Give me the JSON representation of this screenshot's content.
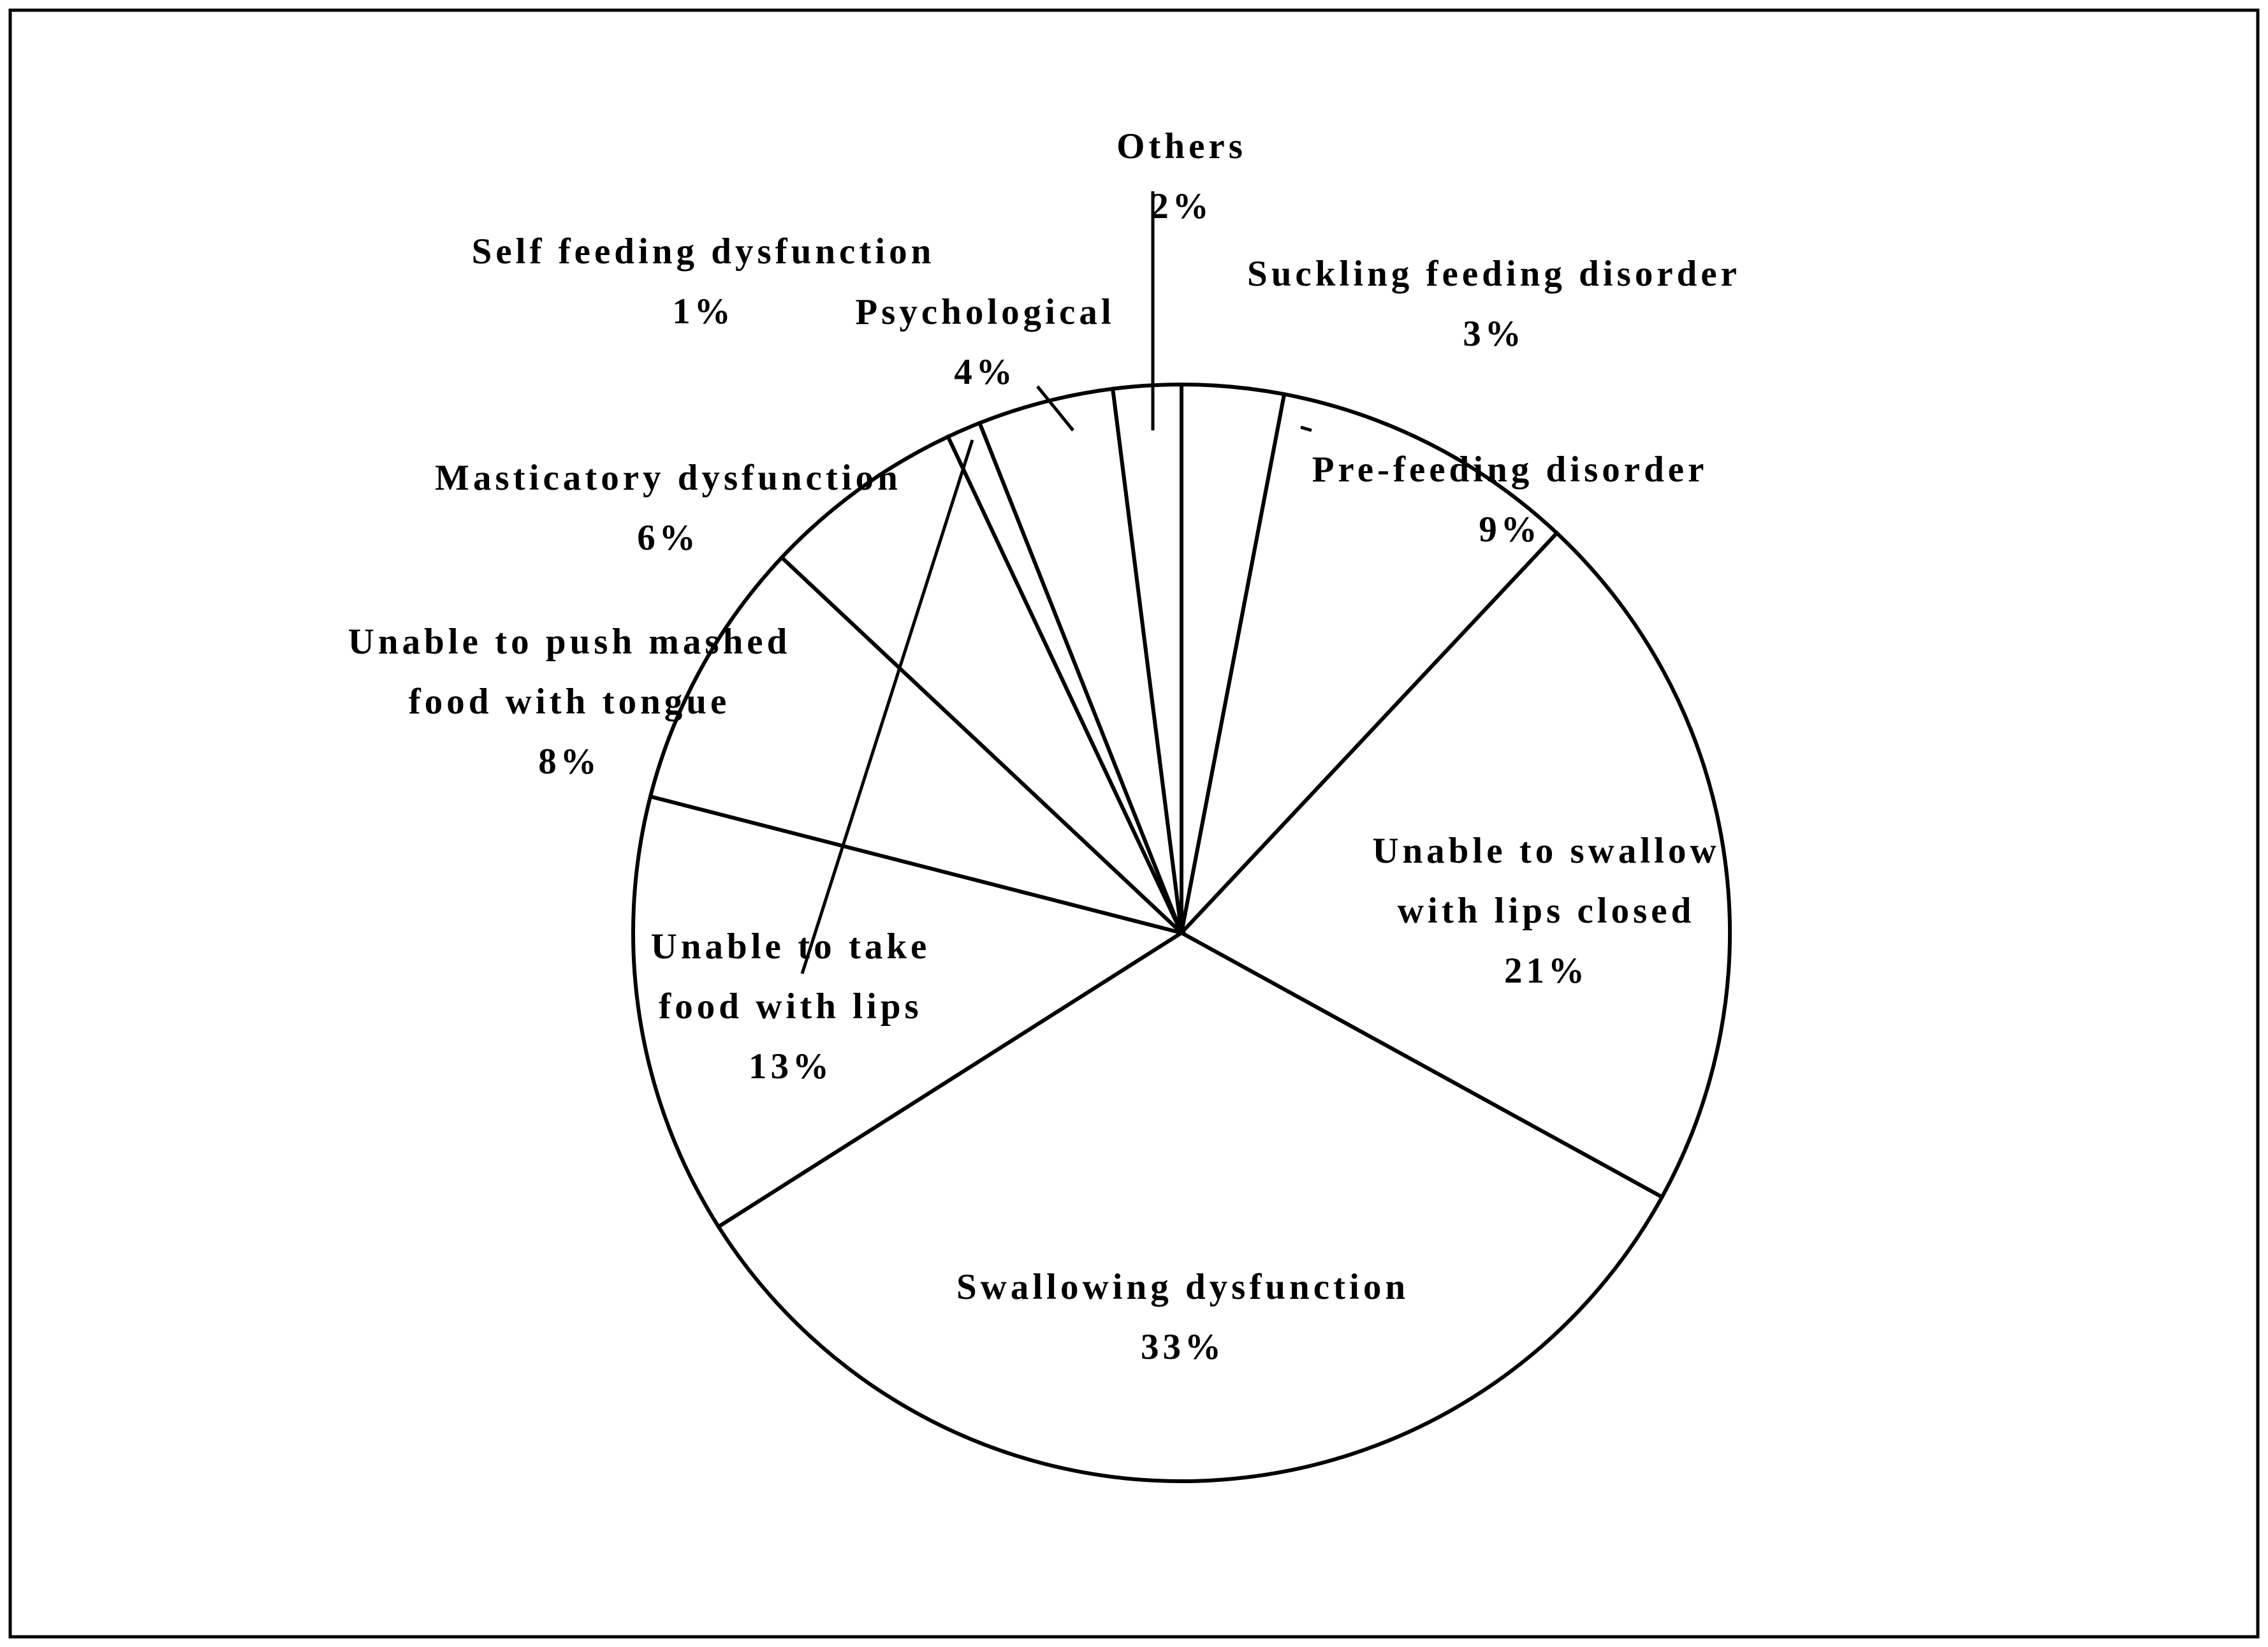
{
  "chart_data": {
    "type": "pie",
    "start": "12 o'clock",
    "direction": "clockwise",
    "slices": [
      {
        "label": [
          "Suckling feeding disorder"
        ],
        "value": 3,
        "value_label": "3%"
      },
      {
        "label": [
          "Pre-feeding disorder"
        ],
        "value": 9,
        "value_label": "9%"
      },
      {
        "label": [
          "Unable to swallow",
          "with lips closed"
        ],
        "value": 21,
        "value_label": "21%"
      },
      {
        "label": [
          "Swallowing dysfunction"
        ],
        "value": 33,
        "value_label": "33%"
      },
      {
        "label": [
          "Unable to take",
          "food with lips"
        ],
        "value": 13,
        "value_label": "13%"
      },
      {
        "label": [
          "Unable to push mashed",
          "food with tongue"
        ],
        "value": 8,
        "value_label": "8%"
      },
      {
        "label": [
          "Masticatory dysfunction"
        ],
        "value": 6,
        "value_label": "6%"
      },
      {
        "label": [
          "Self feeding dysfunction"
        ],
        "value": 1,
        "value_label": "1%"
      },
      {
        "label": [
          "Psychological"
        ],
        "value": 4,
        "value_label": "4%"
      },
      {
        "label": [
          "Others"
        ],
        "value": 2,
        "value_label": "2%"
      }
    ],
    "colors": {
      "slice_fill": "#ffffff",
      "stroke": "#000000"
    }
  }
}
